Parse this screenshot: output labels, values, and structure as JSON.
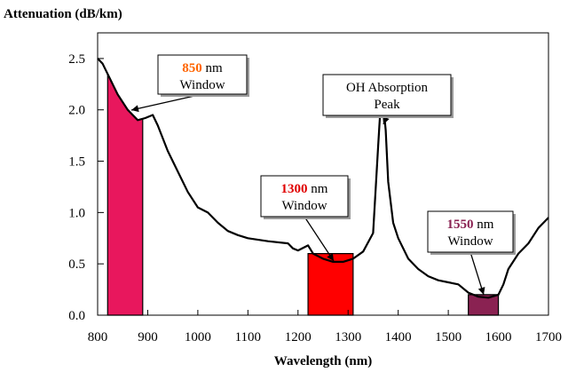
{
  "chart_data": {
    "type": "line",
    "title": "",
    "ylabel": "Attenuation (dB/km)",
    "xlabel": "Wavelength (nm)",
    "xlim": [
      800,
      1700
    ],
    "ylim": [
      0,
      2.75
    ],
    "xticks": [
      "800",
      "900",
      "1000",
      "1100",
      "1200",
      "1300",
      "1400",
      "1500",
      "1600",
      "1700"
    ],
    "yticks": [
      "0.0",
      "0.5",
      "1.0",
      "1.5",
      "2.0",
      "2.5"
    ],
    "grid": false,
    "series": [
      {
        "x": [
          800,
          810,
          820,
          840,
          860,
          880,
          895,
          910,
          920,
          940,
          960,
          980,
          1000,
          1020,
          1040,
          1060,
          1080,
          1100,
          1140,
          1180,
          1190,
          1200,
          1220,
          1230,
          1250,
          1270,
          1290,
          1310,
          1330,
          1350,
          1360,
          1365,
          1370,
          1375,
          1380,
          1390,
          1400,
          1420,
          1440,
          1460,
          1480,
          1500,
          1520,
          1540,
          1560,
          1580,
          1600,
          1610,
          1620,
          1640,
          1660,
          1680,
          1700
        ],
        "y": [
          2.5,
          2.45,
          2.35,
          2.15,
          2.0,
          1.9,
          1.92,
          1.95,
          1.85,
          1.6,
          1.4,
          1.2,
          1.05,
          1.0,
          0.9,
          0.82,
          0.78,
          0.75,
          0.72,
          0.7,
          0.65,
          0.63,
          0.68,
          0.6,
          0.55,
          0.52,
          0.52,
          0.55,
          0.62,
          0.8,
          1.65,
          2.05,
          2.07,
          1.8,
          1.3,
          0.9,
          0.75,
          0.55,
          0.45,
          0.38,
          0.34,
          0.32,
          0.3,
          0.22,
          0.18,
          0.17,
          0.2,
          0.3,
          0.45,
          0.6,
          0.7,
          0.85,
          0.95
        ]
      }
    ],
    "bands": [
      {
        "x0": 820,
        "x1": 890,
        "color": "#e8175d",
        "fill_to_curve": true
      },
      {
        "x0": 1220,
        "x1": 1310,
        "color": "#ff0000",
        "fill_to_curve": false,
        "top": 0.6
      },
      {
        "x0": 1540,
        "x1": 1600,
        "color": "#8a2252",
        "fill_to_curve": false,
        "top": 0.2
      }
    ],
    "annotations": [
      {
        "number": "850",
        "number_color": "#ff6600",
        "line1_rest": " nm",
        "line2": "Window",
        "points_to": [
          850,
          2.05
        ]
      },
      {
        "number": "",
        "number_color": "#000000",
        "line1_rest": "OH Absorption",
        "line2": "Peak",
        "points_to": [
          1370,
          2.05
        ]
      },
      {
        "number": "1300",
        "number_color": "#e00000",
        "line1_rest": " nm",
        "line2": "Window",
        "points_to": [
          1265,
          0.55
        ]
      },
      {
        "number": "1550",
        "number_color": "#8a2252",
        "line1_rest": " nm",
        "line2": "Window",
        "points_to": [
          1565,
          0.2
        ]
      }
    ]
  }
}
